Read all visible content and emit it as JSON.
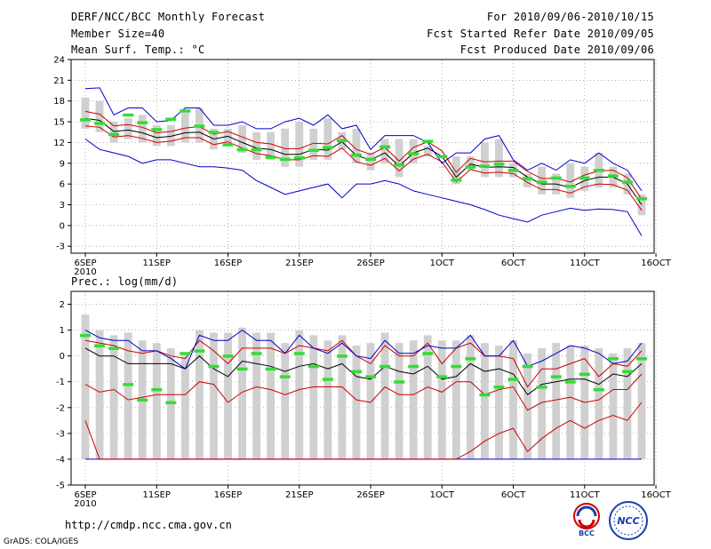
{
  "header": {
    "title": "DERF/NCC/BCC Monthly Forecast",
    "member_size": "Member Size=40",
    "variable": "Mean Surf. Temp.: °C",
    "period": "For 2010/09/06-2010/10/15",
    "fcst_started": "Fcst Started Refer Date 2010/09/05",
    "fcst_produced": "Fcst Produced Date 2010/09/06"
  },
  "footer": {
    "url": "http://cmdp.ncc.cma.gov.cn",
    "grads": "GrADS: COLA/IGES",
    "logo_bcc": "BCC",
    "logo_ncc": "NCC"
  },
  "colors": {
    "box": "#d0d0d0",
    "mean": "#000000",
    "std": "#cc0000",
    "range": "#0000cc",
    "obs": "#33dd33",
    "grid": "#808080"
  },
  "chart_data": [
    {
      "type": "line",
      "title": "Mean Surf. Temp.: °C",
      "ylabel": "°C",
      "ylim": [
        -4,
        24
      ],
      "yticks": [
        -3,
        0,
        3,
        6,
        9,
        12,
        15,
        18,
        21,
        24
      ],
      "xtick_labels": [
        "6SEP",
        "11SEP",
        "16SEP",
        "21SEP",
        "26SEP",
        "1OCT",
        "6OCT",
        "11OCT",
        "16OCT"
      ],
      "xtick_sub": "2010",
      "days": 40,
      "series": [
        {
          "name": "ensemble mean",
          "color": "black",
          "values": [
            15.5,
            15.2,
            13.6,
            13.8,
            13.4,
            12.7,
            12.9,
            13.4,
            13.5,
            12.5,
            12.9,
            12.0,
            11.2,
            11.0,
            10.3,
            10.3,
            11.0,
            10.9,
            12.1,
            10.1,
            9.5,
            10.5,
            8.6,
            10.5,
            11.2,
            10.0,
            7.0,
            8.9,
            8.4,
            8.5,
            8.4,
            7.0,
            6.0,
            6.0,
            5.5,
            6.5,
            7.0,
            7.0,
            6.0,
            3.0
          ]
        },
        {
          "name": "mean + std",
          "color": "red",
          "values": [
            16.5,
            16.1,
            14.4,
            14.6,
            14.2,
            13.4,
            13.6,
            14.1,
            14.3,
            13.2,
            13.6,
            12.8,
            12.0,
            11.8,
            11.1,
            11.1,
            11.9,
            11.8,
            13.0,
            11.0,
            10.3,
            11.3,
            9.3,
            11.3,
            12.1,
            10.8,
            7.7,
            9.7,
            9.2,
            9.3,
            9.3,
            7.8,
            6.8,
            6.8,
            6.3,
            7.3,
            7.9,
            8.0,
            6.9,
            3.8
          ]
        },
        {
          "name": "mean - std",
          "color": "red",
          "values": [
            14.4,
            14.2,
            12.8,
            13.0,
            12.6,
            12.0,
            12.2,
            12.7,
            12.7,
            11.7,
            12.1,
            11.2,
            10.4,
            10.1,
            9.5,
            9.5,
            10.1,
            10.0,
            11.2,
            9.2,
            8.7,
            9.7,
            7.9,
            9.6,
            10.3,
            9.2,
            6.3,
            8.1,
            7.6,
            7.7,
            7.5,
            6.2,
            5.2,
            5.2,
            4.7,
            5.6,
            6.0,
            5.9,
            5.1,
            2.2
          ]
        },
        {
          "name": "ensemble max",
          "color": "blue",
          "values": [
            19.8,
            19.9,
            16.0,
            17.0,
            17.0,
            15.0,
            15.2,
            17.0,
            17.0,
            14.5,
            14.5,
            15.0,
            14.0,
            14.0,
            15.0,
            15.5,
            14.5,
            16.0,
            14.0,
            14.5,
            11.0,
            13.0,
            13.0,
            13.0,
            12.0,
            9.0,
            10.5,
            10.5,
            12.5,
            13.0,
            9.5,
            8.0,
            9.0,
            8.0,
            9.5,
            9.0,
            10.5,
            9.0,
            8.0,
            5.0
          ]
        },
        {
          "name": "ensemble min",
          "color": "blue",
          "values": [
            12.5,
            11.0,
            10.5,
            10.0,
            9.0,
            9.5,
            9.5,
            9.0,
            8.5,
            8.5,
            8.3,
            8.0,
            6.5,
            5.5,
            4.5,
            5.0,
            5.5,
            6.0,
            4.0,
            6.0,
            6.0,
            6.5,
            6.0,
            5.0,
            4.5,
            4.0,
            3.5,
            3.0,
            2.3,
            1.5,
            1.0,
            0.5,
            1.5,
            2.0,
            2.5,
            2.2,
            2.4,
            2.3,
            2.0,
            -1.5
          ]
        }
      ],
      "boxes": {
        "low": [
          14.0,
          13.5,
          12.0,
          12.5,
          12.0,
          11.5,
          11.5,
          12.0,
          12.0,
          11.0,
          11.5,
          10.5,
          9.5,
          9.5,
          8.5,
          8.5,
          9.5,
          9.5,
          11.0,
          9.0,
          8.0,
          9.0,
          7.0,
          9.0,
          10.0,
          8.5,
          6.0,
          8.0,
          7.0,
          7.0,
          7.0,
          5.5,
          4.5,
          4.5,
          4.0,
          5.0,
          5.5,
          5.5,
          4.5,
          1.5
        ],
        "high": [
          18.5,
          18.0,
          15.0,
          15.5,
          16.0,
          14.5,
          14.5,
          16.5,
          17.0,
          14.0,
          14.0,
          14.5,
          13.5,
          13.5,
          14.0,
          15.0,
          14.0,
          15.5,
          13.5,
          14.0,
          10.5,
          12.5,
          12.5,
          12.5,
          11.5,
          8.5,
          10.0,
          10.0,
          12.0,
          12.5,
          9.0,
          7.5,
          8.5,
          7.5,
          9.0,
          8.5,
          10.5,
          8.5,
          7.5,
          4.5
        ]
      },
      "observed": [
        15.3,
        14.8,
        13.2,
        16.0,
        14.9,
        13.9,
        15.4,
        16.6,
        14.4,
        13.5,
        11.7,
        11.0,
        11.0,
        9.9,
        9.6,
        9.8,
        10.9,
        11.3,
        12.3,
        10.2,
        9.6,
        11.4,
        8.8,
        10.4,
        12.2,
        10.0,
        6.6,
        8.5,
        8.6,
        8.9,
        8.0,
        6.8,
        6.3,
        6.9,
        5.7,
        6.9,
        8.0,
        7.2,
        6.3,
        3.9
      ]
    },
    {
      "type": "line",
      "title": "Prec.: log(mm/d)",
      "ylabel": "log(mm/d)",
      "ylim": [
        -5,
        2.5
      ],
      "yticks": [
        -5,
        -4,
        -3,
        -2,
        -1,
        0,
        1,
        2
      ],
      "xtick_labels": [
        "6SEP",
        "11SEP",
        "16SEP",
        "21SEP",
        "26SEP",
        "1OCT",
        "6OCT",
        "11OCT",
        "16OCT"
      ],
      "xtick_sub": "2010",
      "days": 40,
      "series": [
        {
          "name": "ensemble mean",
          "color": "black",
          "values": [
            0.3,
            0.0,
            0.0,
            -0.3,
            -0.3,
            -0.3,
            -0.3,
            -0.5,
            0.0,
            -0.5,
            -0.8,
            -0.2,
            -0.3,
            -0.4,
            -0.6,
            -0.4,
            -0.3,
            -0.5,
            -0.3,
            -0.8,
            -0.9,
            -0.4,
            -0.6,
            -0.7,
            -0.4,
            -0.9,
            -0.8,
            -0.3,
            -0.6,
            -0.5,
            -0.7,
            -1.5,
            -1.1,
            -1.0,
            -0.9,
            -0.9,
            -1.1,
            -0.7,
            -0.8,
            -0.3
          ]
        },
        {
          "name": "mean + std",
          "color": "red",
          "values": [
            0.6,
            0.5,
            0.4,
            0.2,
            0.1,
            0.2,
            0.0,
            -0.1,
            0.6,
            0.2,
            -0.3,
            0.3,
            0.3,
            0.3,
            0.1,
            0.4,
            0.3,
            0.2,
            0.6,
            0.0,
            -0.3,
            0.4,
            0.0,
            0.0,
            0.5,
            -0.3,
            0.3,
            0.5,
            0.0,
            0.0,
            -0.1,
            -1.2,
            -0.5,
            -0.5,
            -0.3,
            -0.1,
            -0.8,
            -0.3,
            -0.4,
            0.2
          ]
        },
        {
          "name": "mean - std",
          "color": "red",
          "values": [
            -1.1,
            -1.4,
            -1.3,
            -1.7,
            -1.6,
            -1.5,
            -1.5,
            -1.5,
            -1.0,
            -1.1,
            -1.8,
            -1.4,
            -1.2,
            -1.3,
            -1.5,
            -1.3,
            -1.2,
            -1.2,
            -1.2,
            -1.7,
            -1.8,
            -1.2,
            -1.5,
            -1.5,
            -1.2,
            -1.4,
            -1.0,
            -1.0,
            -1.5,
            -1.3,
            -1.2,
            -2.1,
            -1.8,
            -1.7,
            -1.6,
            -1.8,
            -1.7,
            -1.3,
            -1.3,
            -0.7
          ]
        },
        {
          "name": "ensemble max",
          "color": "blue",
          "values": [
            1.0,
            0.7,
            0.6,
            0.6,
            0.2,
            0.2,
            -0.1,
            -0.5,
            0.8,
            0.6,
            0.6,
            1.0,
            0.6,
            0.6,
            0.1,
            0.8,
            0.3,
            0.1,
            0.5,
            0.0,
            -0.1,
            0.6,
            0.1,
            0.1,
            0.4,
            0.3,
            0.3,
            0.8,
            0.0,
            0.0,
            0.6,
            -0.4,
            -0.2,
            0.1,
            0.4,
            0.3,
            0.1,
            -0.3,
            -0.2,
            0.5
          ]
        },
        {
          "name": "ensemble min",
          "color": "blue",
          "values": [
            -4,
            -4,
            -4,
            -4,
            -4,
            -4,
            -4,
            -4,
            -4,
            -4,
            -4,
            -4,
            -4,
            -4,
            -4,
            -4,
            -4,
            -4,
            -4,
            -4,
            -4,
            -4,
            -4,
            -4,
            -4,
            -4,
            -4,
            -4,
            -4,
            -4,
            -4,
            -4,
            -4,
            -4,
            -4,
            -4,
            -4,
            -4,
            -4,
            -4
          ]
        },
        {
          "name": "lower red",
          "color": "red",
          "values": [
            -2.5,
            -4,
            -4,
            -4,
            -4,
            -4,
            -4,
            -4,
            -4,
            -4,
            -4,
            -4,
            -4,
            -4,
            -4,
            -4,
            -4,
            -4,
            -4,
            -4,
            -4,
            -4,
            -4,
            -4,
            -4,
            -4,
            -4,
            -3.7,
            -3.3,
            -3.0,
            -2.8,
            -3.7,
            -3.2,
            -2.8,
            -2.5,
            -2.8,
            -2.5,
            -2.3,
            -2.5,
            -1.8
          ]
        }
      ],
      "boxes": {
        "low": [
          -4,
          -4,
          -4,
          -4,
          -4,
          -4,
          -4,
          -4,
          -4,
          -4,
          -4,
          -4,
          -4,
          -4,
          -4,
          -4,
          -4,
          -4,
          -4,
          -4,
          -4,
          -4,
          -4,
          -4,
          -4,
          -4,
          -4,
          -4,
          -4,
          -4,
          -4,
          -4,
          -4,
          -4,
          -4,
          -4,
          -4,
          -4,
          -4,
          -4
        ],
        "high": [
          1.6,
          1.0,
          0.8,
          0.9,
          0.6,
          0.5,
          0.3,
          0.0,
          1.0,
          0.9,
          0.9,
          1.1,
          0.9,
          0.9,
          0.5,
          1.0,
          0.8,
          0.6,
          0.8,
          0.4,
          0.5,
          0.9,
          0.5,
          0.6,
          0.8,
          0.6,
          0.6,
          0.8,
          0.5,
          0.4,
          0.6,
          0.1,
          0.3,
          0.5,
          0.4,
          0.4,
          0.3,
          0.1,
          0.3,
          0.5
        ]
      },
      "observed": [
        0.8,
        0.4,
        0.3,
        -1.1,
        -1.7,
        -1.3,
        -1.8,
        0.1,
        0.2,
        -0.4,
        0.0,
        -0.5,
        0.1,
        -0.5,
        -0.8,
        0.1,
        -0.4,
        -0.9,
        0.0,
        -0.6,
        -0.8,
        -0.4,
        -1.0,
        -0.4,
        0.1,
        -0.8,
        -0.4,
        -0.1,
        -1.5,
        -1.2,
        -0.9,
        -0.4,
        -1.2,
        -0.8,
        -1.0,
        -0.7,
        -1.3,
        -0.1,
        -0.6,
        -0.1
      ]
    }
  ]
}
